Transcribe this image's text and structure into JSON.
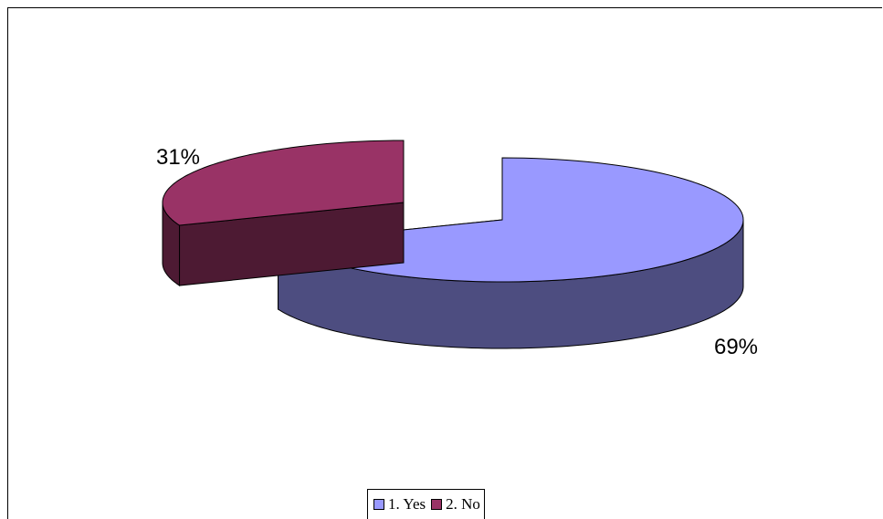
{
  "chart_data": {
    "type": "pie",
    "style": "3d-exploded",
    "categories": [
      "1. Yes",
      "2. No"
    ],
    "values": [
      69,
      31
    ],
    "data_labels": [
      "69%",
      "31%"
    ],
    "colors": {
      "1. Yes": {
        "top": "#9999ff",
        "side": "#4d4d80"
      },
      "2. No": {
        "top": "#993366",
        "side": "#4d1a33"
      }
    },
    "legend_position": "bottom"
  }
}
